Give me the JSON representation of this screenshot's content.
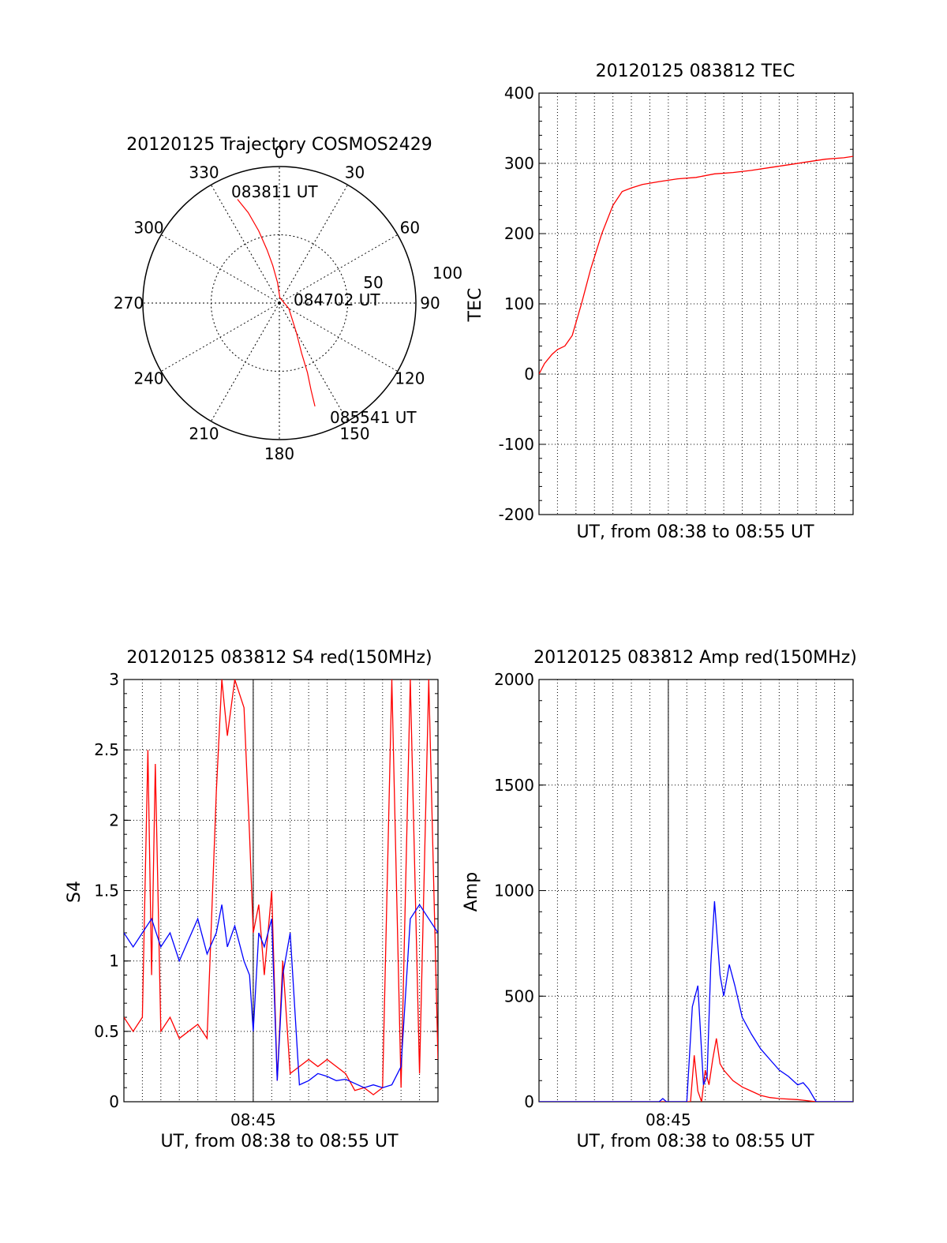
{
  "colors": {
    "red": "#ff0000",
    "blue": "#0000ff",
    "axis": "#000000",
    "grid": "#000000"
  },
  "charts": {
    "polar": {
      "type": "polar-trajectory",
      "title": "20120125 Trajectory COSMOS2429",
      "azimuth_labels": [
        "0",
        "30",
        "60",
        "90",
        "120",
        "150",
        "180",
        "210",
        "240",
        "270",
        "300",
        "330"
      ],
      "radius_labels": [
        "50",
        "100"
      ],
      "r_max": 100,
      "annotations": {
        "start": "083811 UT",
        "mid": "084702 UT",
        "end": "085541 UT"
      },
      "chart_data": {
        "type": "polar-line",
        "series": [
          {
            "color": "#ff0000",
            "points": [
              [
                338,
                82
              ],
              [
                341,
                70
              ],
              [
                344,
                55
              ],
              [
                347,
                40
              ],
              [
                350,
                28
              ],
              [
                355,
                15
              ],
              [
                5,
                4
              ],
              [
                120,
                8
              ],
              [
                150,
                25
              ],
              [
                156,
                40
              ],
              [
                158,
                55
              ],
              [
                160,
                68
              ],
              [
                161,
                80
              ]
            ]
          }
        ]
      }
    },
    "tec": {
      "type": "line",
      "title": "20120125 083812 TEC",
      "ylabel": "TEC",
      "xlabel": "UT, from 08:38 to 08:55 UT",
      "ylim": [
        -200,
        400
      ],
      "yticks": [
        "400",
        "300",
        "200",
        "100",
        "0",
        "-100",
        "-200"
      ],
      "chart_data": {
        "type": "line",
        "x_unit": "minutes after 08:38",
        "xlim": [
          0,
          17
        ],
        "series": [
          {
            "color": "#ff0000",
            "x": [
              0,
              0.3,
              0.7,
              1.0,
              1.4,
              1.8,
              2.3,
              2.8,
              3.4,
              4.0,
              4.5,
              5.0,
              5.6,
              6.5,
              7.5,
              8.5,
              9.5,
              10.5,
              11.5,
              12.5,
              13.5,
              14.5,
              15.5,
              16.5,
              17
            ],
            "y": [
              0,
              15,
              28,
              35,
              40,
              55,
              100,
              150,
              200,
              240,
              260,
              265,
              270,
              274,
              278,
              280,
              285,
              287,
              290,
              294,
              298,
              302,
              306,
              308,
              310
            ]
          }
        ]
      }
    },
    "s4": {
      "type": "line",
      "title": "20120125 083812 S4 red(150MHz)",
      "ylabel": "S4",
      "xlabel": "UT, from 08:38 to 08:55 UT",
      "xtick_label": "08:45",
      "xtick_value": 7,
      "ylim": [
        0,
        3
      ],
      "yticks": [
        "3",
        "2.5",
        "2",
        "1.5",
        "1",
        "0.5",
        "0"
      ],
      "chart_data": {
        "type": "line",
        "x_unit": "minutes after 08:38",
        "xlim": [
          0,
          17
        ],
        "series": [
          {
            "color": "#ff0000",
            "x": [
              0,
              0.5,
              1,
              1.3,
              1.5,
              1.7,
              2,
              2.5,
              3,
              3.5,
              4,
              4.5,
              5,
              5.3,
              5.6,
              6,
              6.5,
              6.8,
              7,
              7.3,
              7.6,
              8,
              8.3,
              8.6,
              9,
              9.5,
              10,
              10.5,
              11,
              11.5,
              12,
              12.5,
              13,
              13.5,
              14,
              14.5,
              15,
              15.5,
              16,
              16.5,
              17
            ],
            "y": [
              0.6,
              0.5,
              0.6,
              2.5,
              0.9,
              2.4,
              0.5,
              0.6,
              0.45,
              0.5,
              0.55,
              0.45,
              2.2,
              3,
              2.6,
              3,
              2.8,
              1.9,
              1.2,
              1.4,
              0.9,
              1.5,
              0.15,
              1.0,
              0.2,
              0.25,
              0.3,
              0.25,
              0.3,
              0.25,
              0.2,
              0.08,
              0.1,
              0.05,
              0.1,
              3,
              0.1,
              3,
              0.2,
              3,
              0.3
            ]
          },
          {
            "color": "#0000ff",
            "x": [
              0,
              0.5,
              1,
              1.5,
              2,
              2.5,
              3,
              3.5,
              4,
              4.5,
              5,
              5.3,
              5.6,
              6,
              6.5,
              6.8,
              7,
              7.3,
              7.6,
              8,
              8.3,
              8.6,
              9,
              9.5,
              10,
              10.5,
              11,
              11.5,
              12,
              12.5,
              13,
              13.5,
              14,
              14.5,
              15,
              15.5,
              16,
              16.5,
              17
            ],
            "y": [
              1.2,
              1.1,
              1.2,
              1.3,
              1.1,
              1.2,
              1.0,
              1.15,
              1.3,
              1.05,
              1.2,
              1.4,
              1.1,
              1.25,
              1.0,
              0.9,
              0.5,
              1.2,
              1.1,
              1.3,
              0.15,
              0.9,
              1.2,
              0.12,
              0.15,
              0.2,
              0.18,
              0.15,
              0.16,
              0.13,
              0.1,
              0.12,
              0.1,
              0.12,
              0.25,
              1.3,
              1.4,
              1.3,
              1.2
            ]
          }
        ]
      }
    },
    "amp": {
      "type": "line",
      "title": "20120125 083812 Amp red(150MHz)",
      "ylabel": "Amp",
      "xlabel": "UT, from 08:38 to 08:55 UT",
      "xtick_label": "08:45",
      "xtick_value": 7,
      "ylim": [
        0,
        2000
      ],
      "yticks": [
        "2000",
        "1500",
        "1000",
        "500",
        "0"
      ],
      "chart_data": {
        "type": "line",
        "x_unit": "minutes after 08:38",
        "xlim": [
          0,
          17
        ],
        "series": [
          {
            "color": "#ff0000",
            "x": [
              0,
              8.2,
              8.4,
              8.6,
              8.8,
              9.0,
              9.2,
              9.4,
              9.6,
              9.8,
              10.0,
              10.5,
              11,
              11.5,
              12,
              12.5,
              13,
              14,
              15,
              17
            ],
            "y": [
              0,
              0,
              220,
              50,
              0,
              150,
              80,
              200,
              300,
              180,
              150,
              100,
              70,
              50,
              30,
              20,
              15,
              10,
              0,
              0
            ]
          },
          {
            "color": "#0000ff",
            "x": [
              0,
              6.5,
              6.7,
              6.9,
              8.0,
              8.3,
              8.6,
              8.9,
              9.1,
              9.3,
              9.5,
              9.8,
              10.0,
              10.3,
              10.6,
              11,
              11.5,
              12,
              12.5,
              13,
              13.5,
              14,
              14.3,
              14.6,
              15,
              17
            ],
            "y": [
              0,
              0,
              15,
              0,
              0,
              450,
              550,
              80,
              120,
              650,
              950,
              600,
              500,
              650,
              550,
              400,
              320,
              250,
              200,
              150,
              120,
              80,
              90,
              60,
              0,
              0
            ]
          }
        ]
      }
    }
  }
}
